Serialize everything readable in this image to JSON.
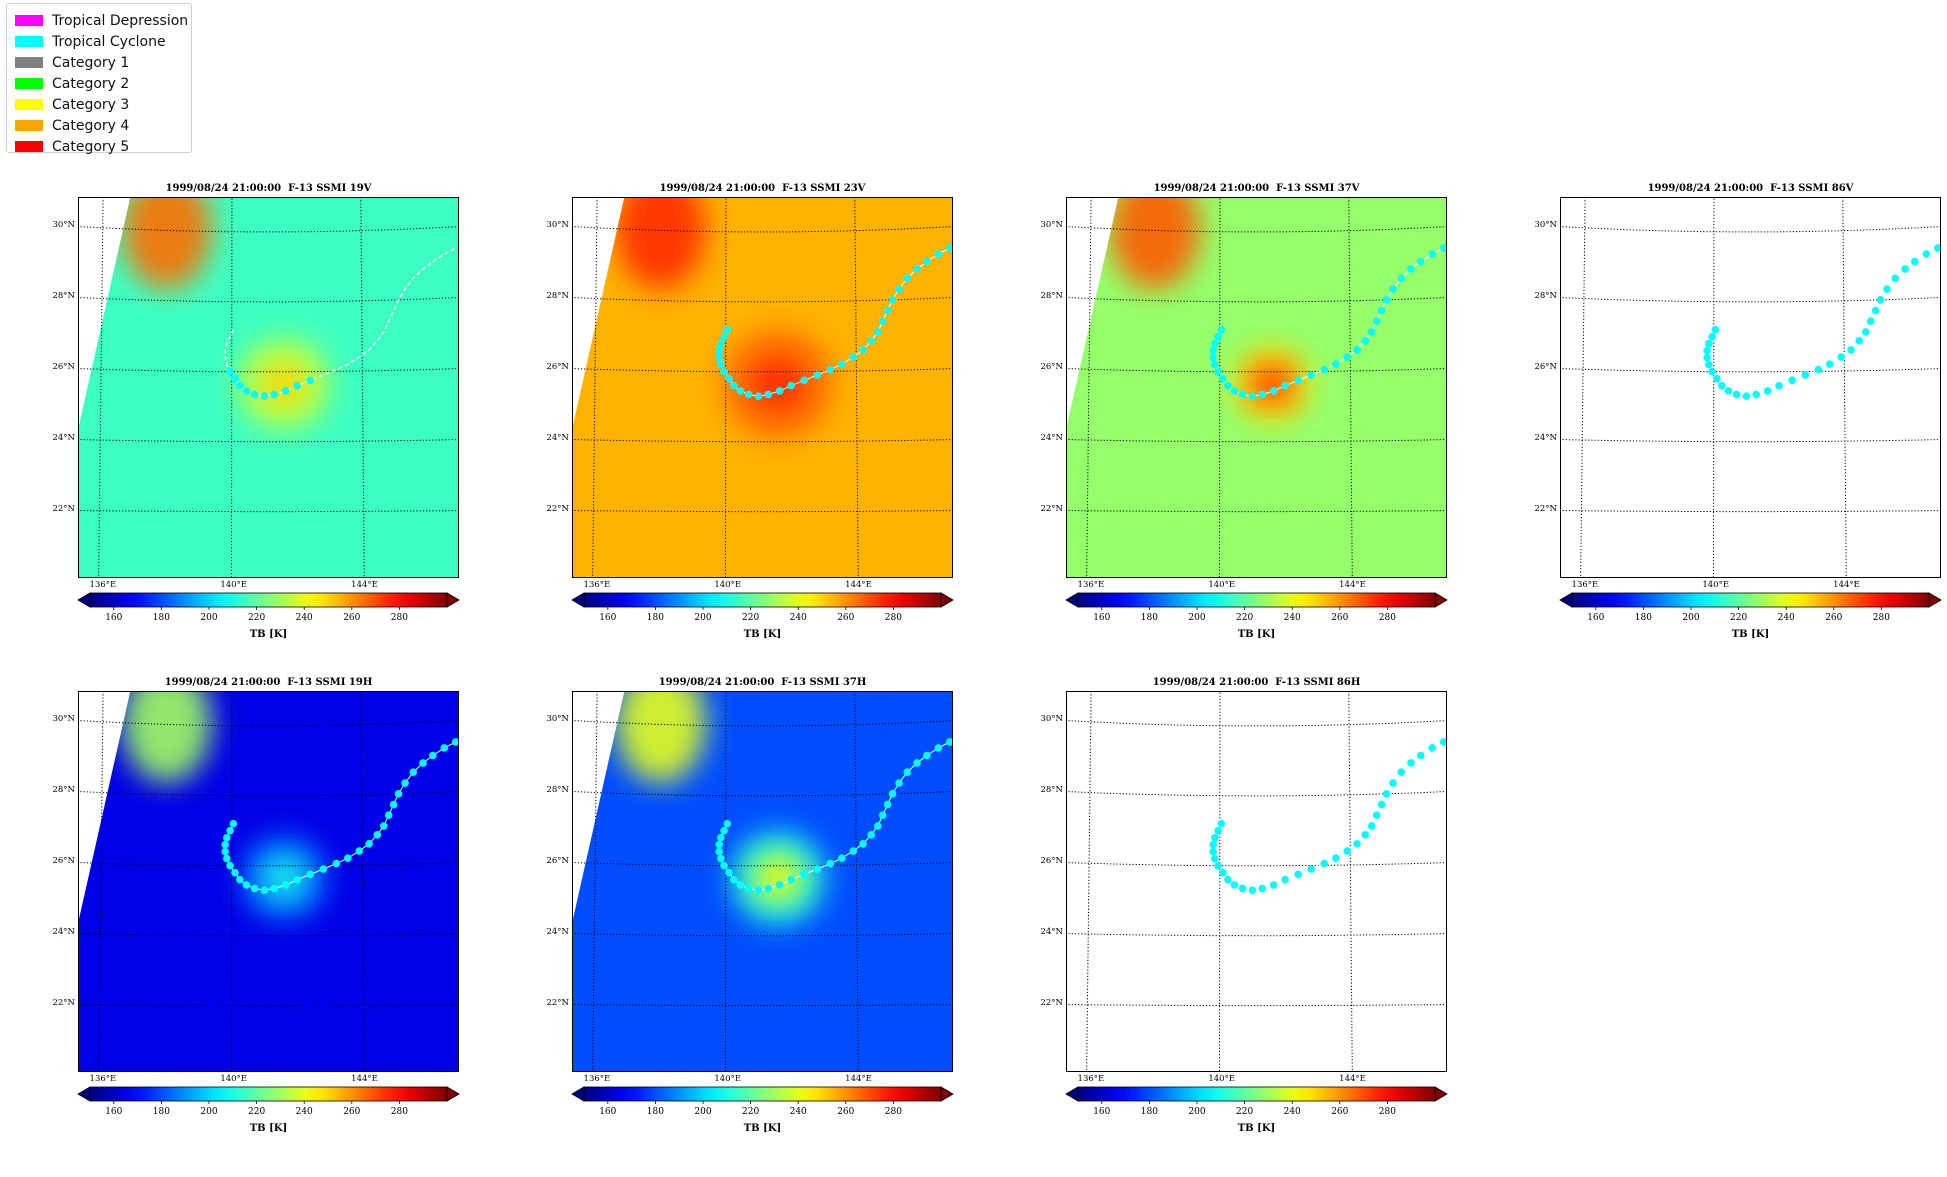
{
  "legend": [
    {
      "label": "Tropical Depression",
      "color": "#ff00ff"
    },
    {
      "label": "Tropical Cyclone",
      "color": "#00ffff"
    },
    {
      "label": "Category 1",
      "color": "#808080"
    },
    {
      "label": "Category 2",
      "color": "#00ff00"
    },
    {
      "label": "Category 3",
      "color": "#ffff00"
    },
    {
      "label": "Category 4",
      "color": "#ffa500"
    },
    {
      "label": "Category 5",
      "color": "#ff0000"
    }
  ],
  "track_color": "#00ffff",
  "map_axes": {
    "lat_labels": [
      "30°N",
      "28°N",
      "26°N",
      "24°N",
      "22°N"
    ],
    "lon_labels": [
      "136°E",
      "140°E",
      "144°E"
    ]
  },
  "colorbar": {
    "ticks": [
      "160",
      "180",
      "200",
      "220",
      "240",
      "260",
      "280"
    ],
    "label": "TB [K]",
    "colormap": "jet",
    "range": [
      150,
      300
    ],
    "extend": "both"
  },
  "track": [
    {
      "lon": 140.05,
      "lat": 27.2
    },
    {
      "lon": 139.95,
      "lat": 27.0
    },
    {
      "lon": 139.85,
      "lat": 26.8
    },
    {
      "lon": 139.8,
      "lat": 26.6
    },
    {
      "lon": 139.8,
      "lat": 26.4
    },
    {
      "lon": 139.85,
      "lat": 26.2
    },
    {
      "lon": 139.95,
      "lat": 26.0
    },
    {
      "lon": 140.1,
      "lat": 25.8
    },
    {
      "lon": 140.25,
      "lat": 25.6
    },
    {
      "lon": 140.45,
      "lat": 25.45
    },
    {
      "lon": 140.7,
      "lat": 25.35
    },
    {
      "lon": 141.0,
      "lat": 25.3
    },
    {
      "lon": 141.3,
      "lat": 25.35
    },
    {
      "lon": 141.65,
      "lat": 25.45
    },
    {
      "lon": 142.0,
      "lat": 25.6
    },
    {
      "lon": 142.4,
      "lat": 25.75
    },
    {
      "lon": 142.8,
      "lat": 25.9
    },
    {
      "lon": 143.2,
      "lat": 26.05
    },
    {
      "lon": 143.55,
      "lat": 26.2
    },
    {
      "lon": 143.9,
      "lat": 26.4
    },
    {
      "lon": 144.2,
      "lat": 26.6
    },
    {
      "lon": 144.45,
      "lat": 26.85
    },
    {
      "lon": 144.65,
      "lat": 27.1
    },
    {
      "lon": 144.8,
      "lat": 27.4
    },
    {
      "lon": 144.95,
      "lat": 27.7
    },
    {
      "lon": 145.1,
      "lat": 28.0
    },
    {
      "lon": 145.3,
      "lat": 28.3
    },
    {
      "lon": 145.55,
      "lat": 28.6
    },
    {
      "lon": 145.85,
      "lat": 28.85
    },
    {
      "lon": 146.15,
      "lat": 29.05
    },
    {
      "lon": 146.5,
      "lat": 29.25
    },
    {
      "lon": 146.85,
      "lat": 29.4
    }
  ],
  "panels": [
    {
      "id": "19v",
      "title": "1999/08/24 21:00:00  F-13 SSMI 19V",
      "has_data": true,
      "bg_tb": 215,
      "storm_tb": 250,
      "storm_radius": 1.1,
      "nw_tb": 265,
      "track_style": "dashed"
    },
    {
      "id": "23v",
      "title": "1999/08/24 21:00:00  F-13 SSMI 23V",
      "has_data": true,
      "bg_tb": 255,
      "storm_tb": 275,
      "storm_radius": 1.3,
      "nw_tb": 275,
      "track_style": "dots"
    },
    {
      "id": "37v",
      "title": "1999/08/24 21:00:00  F-13 SSMI 37V",
      "has_data": true,
      "bg_tb": 228,
      "storm_tb": 275,
      "storm_radius": 0.9,
      "nw_tb": 268,
      "track_style": "dots"
    },
    {
      "id": "86v",
      "title": "1999/08/24 21:00:00  F-13 SSMI 86V",
      "has_data": false,
      "track_style": "dots"
    },
    {
      "id": "19h",
      "title": "1999/08/24 21:00:00  F-13 SSMI 19H",
      "has_data": true,
      "bg_tb": 165,
      "storm_tb": 210,
      "storm_radius": 1.0,
      "nw_tb": 230,
      "track_style": "dots"
    },
    {
      "id": "37h",
      "title": "1999/08/24 21:00:00  F-13 SSMI 37H",
      "has_data": true,
      "bg_tb": 180,
      "storm_tb": 245,
      "storm_radius": 1.1,
      "nw_tb": 240,
      "track_style": "dots"
    },
    {
      "id": "86h",
      "title": "1999/08/24 21:00:00  F-13 SSMI 86H",
      "has_data": false,
      "track_style": "dots"
    }
  ]
}
